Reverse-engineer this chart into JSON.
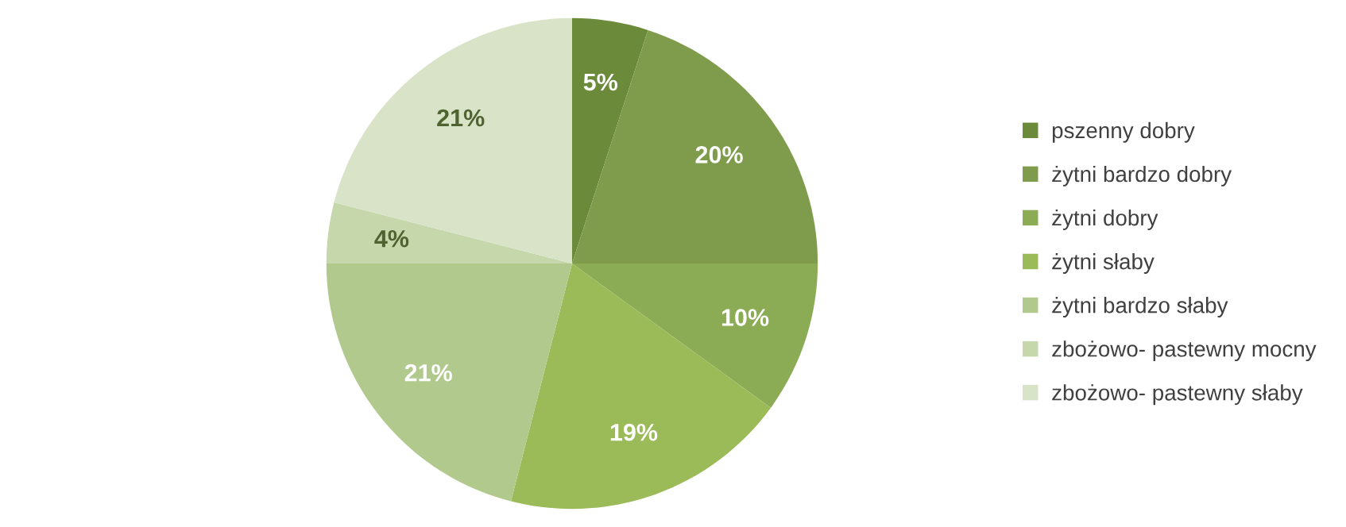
{
  "chart_data": {
    "type": "pie",
    "categories": [
      "pszenny dobry",
      "żytni bardzo dobry",
      "żytni dobry",
      "żytni słaby",
      "żytni bardzo słaby",
      "zbożowo- pastewny mocny",
      "zbożowo- pastewny słaby"
    ],
    "values": [
      5,
      20,
      10,
      19,
      21,
      4,
      21
    ],
    "value_labels": [
      "5%",
      "20%",
      "10%",
      "19%",
      "21%",
      "4%",
      "21%"
    ],
    "colors": [
      "#6b8a3a",
      "#7e9c4b",
      "#8cab55",
      "#9bbb59",
      "#b2c98e",
      "#c6d7ac",
      "#d9e3c8"
    ],
    "legend": "right"
  }
}
